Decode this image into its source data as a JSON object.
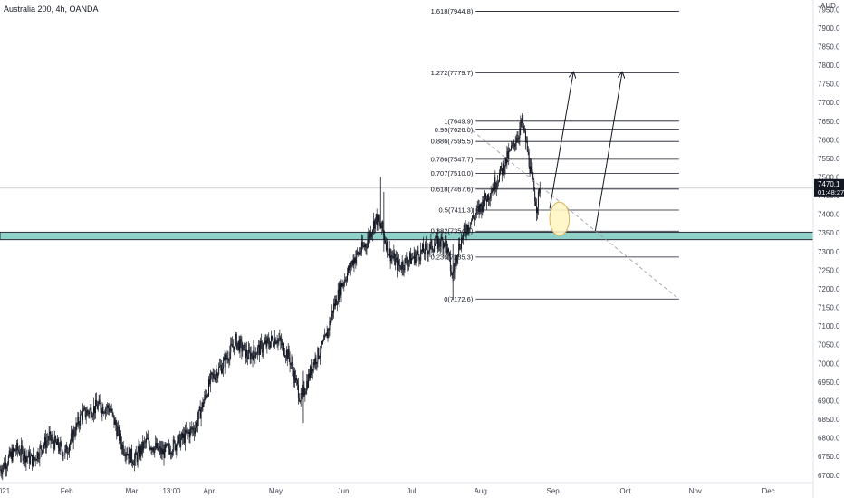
{
  "header": {
    "title": "Australia 200, 4h, OANDA",
    "currency": "AUD"
  },
  "price_label": {
    "price": "7470.1",
    "countdown": "01:48:27"
  },
  "chart_data": {
    "type": "candlestick",
    "y_ticks": [
      7950,
      7900,
      7850,
      7800,
      7750,
      7700,
      7650,
      7600,
      7550,
      7500,
      7450,
      7400,
      7350,
      7300,
      7250,
      7200,
      7150,
      7100,
      7050,
      7000,
      6950,
      6900,
      6850,
      6800,
      6750,
      6700
    ],
    "ylim": [
      6680,
      7975
    ],
    "x_labels": [
      {
        "label": "021",
        "pos": 0.005
      },
      {
        "label": "Feb",
        "pos": 0.082
      },
      {
        "label": "Mar",
        "pos": 0.162
      },
      {
        "label": "13:00",
        "pos": 0.211
      },
      {
        "label": "Apr",
        "pos": 0.257
      },
      {
        "label": "May",
        "pos": 0.339
      },
      {
        "label": "Jun",
        "pos": 0.422
      },
      {
        "label": "Jul",
        "pos": 0.506
      },
      {
        "label": "Aug",
        "pos": 0.591
      },
      {
        "label": "Sep",
        "pos": 0.68
      },
      {
        "label": "Oct",
        "pos": 0.769
      },
      {
        "label": "Nov",
        "pos": 0.855
      },
      {
        "label": "Dec",
        "pos": 0.945
      }
    ],
    "price_path": [
      {
        "t": 0.0,
        "v": 6715
      },
      {
        "t": 0.02,
        "v": 6770
      },
      {
        "t": 0.04,
        "v": 6740
      },
      {
        "t": 0.06,
        "v": 6800
      },
      {
        "t": 0.08,
        "v": 6760
      },
      {
        "t": 0.1,
        "v": 6860
      },
      {
        "t": 0.12,
        "v": 6885
      },
      {
        "t": 0.135,
        "v": 6880
      },
      {
        "t": 0.15,
        "v": 6780
      },
      {
        "t": 0.165,
        "v": 6740
      },
      {
        "t": 0.18,
        "v": 6790
      },
      {
        "t": 0.2,
        "v": 6760
      },
      {
        "t": 0.22,
        "v": 6790
      },
      {
        "t": 0.24,
        "v": 6830
      },
      {
        "t": 0.26,
        "v": 6960
      },
      {
        "t": 0.275,
        "v": 7000
      },
      {
        "t": 0.29,
        "v": 7060
      },
      {
        "t": 0.305,
        "v": 7020
      },
      {
        "t": 0.32,
        "v": 7040
      },
      {
        "t": 0.34,
        "v": 7070
      },
      {
        "t": 0.355,
        "v": 7020
      },
      {
        "t": 0.37,
        "v": 6900
      },
      {
        "t": 0.385,
        "v": 7000
      },
      {
        "t": 0.4,
        "v": 7060
      },
      {
        "t": 0.41,
        "v": 7150
      },
      {
        "t": 0.42,
        "v": 7210
      },
      {
        "t": 0.435,
        "v": 7280
      },
      {
        "t": 0.45,
        "v": 7320
      },
      {
        "t": 0.462,
        "v": 7390
      },
      {
        "t": 0.47,
        "v": 7360
      },
      {
        "t": 0.478,
        "v": 7300
      },
      {
        "t": 0.49,
        "v": 7260
      },
      {
        "t": 0.505,
        "v": 7280
      },
      {
        "t": 0.52,
        "v": 7300
      },
      {
        "t": 0.535,
        "v": 7320
      },
      {
        "t": 0.548,
        "v": 7330
      },
      {
        "t": 0.556,
        "v": 7230
      },
      {
        "t": 0.562,
        "v": 7300
      },
      {
        "t": 0.572,
        "v": 7360
      },
      {
        "t": 0.585,
        "v": 7400
      },
      {
        "t": 0.6,
        "v": 7450
      },
      {
        "t": 0.615,
        "v": 7510
      },
      {
        "t": 0.628,
        "v": 7570
      },
      {
        "t": 0.638,
        "v": 7620
      },
      {
        "t": 0.642,
        "v": 7650
      },
      {
        "t": 0.647,
        "v": 7590
      },
      {
        "t": 0.653,
        "v": 7510
      },
      {
        "t": 0.66,
        "v": 7420
      },
      {
        "t": 0.664,
        "v": 7470
      }
    ],
    "spikes": [
      {
        "t": 0.468,
        "high": 7500,
        "low": 7360
      },
      {
        "t": 0.373,
        "high": 6980,
        "low": 6840
      },
      {
        "t": 0.557,
        "high": 7320,
        "low": 7170
      },
      {
        "t": 0.472,
        "high": 7460,
        "low": 7300
      }
    ],
    "fib_levels": [
      {
        "label": "1.618(7944.8)",
        "value": 7944.8
      },
      {
        "label": "1.272(7779.7)",
        "value": 7779.7
      },
      {
        "label": "1(7649.9)",
        "value": 7649.9
      },
      {
        "label": "0.95(7626.0)",
        "value": 7626.0
      },
      {
        "label": "0.886(7595.5)",
        "value": 7595.5
      },
      {
        "label": "0.786(7547.7)",
        "value": 7547.7
      },
      {
        "label": "0.707(7510.0)",
        "value": 7510.0
      },
      {
        "label": "0.618(7467.6)",
        "value": 7467.6
      },
      {
        "label": "0.5(7411.3)",
        "value": 7411.3
      },
      {
        "label": "0.382(7354.9)",
        "value": 7354.9
      },
      {
        "label": "0.236(7285.3)",
        "value": 7285.3
      },
      {
        "label": "0(7172.6)",
        "value": 7172.6
      }
    ],
    "fib_range": {
      "start": 0.585,
      "end": 0.835
    },
    "zone": {
      "low": 7332,
      "high": 7352,
      "color": "#8fd0c8",
      "border": "#2a2e39"
    },
    "crosshair_price": 7470.1,
    "dashed_trendline": [
      {
        "t": 0.575,
        "v": 7635
      },
      {
        "t": 0.835,
        "v": 7172
      }
    ],
    "arrows": [
      {
        "from": {
          "t": 0.676,
          "v": 7415
        },
        "to": {
          "t": 0.705,
          "v": 7780
        }
      },
      {
        "from": {
          "t": 0.732,
          "v": 7355
        },
        "to": {
          "t": 0.765,
          "v": 7780
        }
      }
    ],
    "highlight_ellipse": {
      "t": 0.688,
      "v": 7388,
      "rt": 0.012,
      "rv": 45,
      "fill": "#fff5c4",
      "stroke": "#d8b35a"
    },
    "colors": {
      "candle": "#131722",
      "fib_line": "#131722",
      "axis_text": "#434651",
      "price_tag_bg": "#131722"
    }
  }
}
